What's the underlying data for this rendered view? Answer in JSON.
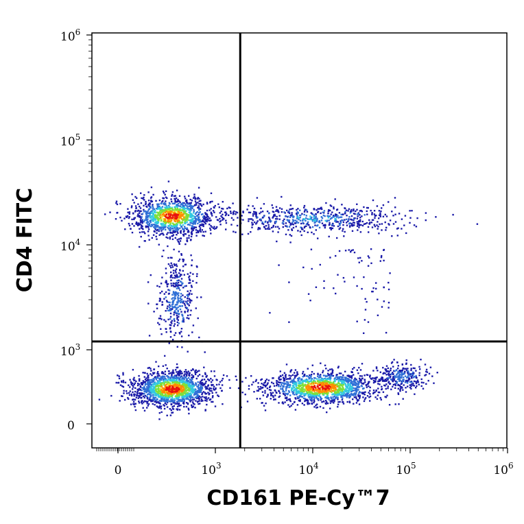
{
  "chart_data": {
    "type": "scatter",
    "subtype": "flow-cytometry-density-dot-plot",
    "xlabel": "CD161 PE-Cy™7",
    "ylabel": "CD4 FITC",
    "x_scale": "biexponential",
    "y_scale": "biexponential",
    "x_ticks": [
      {
        "base": "0",
        "exp": ""
      },
      {
        "base": "10",
        "exp": "3"
      },
      {
        "base": "10",
        "exp": "4"
      },
      {
        "base": "10",
        "exp": "5"
      },
      {
        "base": "10",
        "exp": "6"
      }
    ],
    "y_ticks": [
      {
        "base": "0",
        "exp": ""
      },
      {
        "base": "10",
        "exp": "3"
      },
      {
        "base": "10",
        "exp": "4"
      },
      {
        "base": "10",
        "exp": "5"
      },
      {
        "base": "10",
        "exp": "6"
      }
    ],
    "quadrant_gate": {
      "x": 1800,
      "y": 1200
    },
    "density_colors": [
      "#1a1aa8",
      "#2f6fd6",
      "#33c9e0",
      "#7ee03a",
      "#f0e020",
      "#ff8a00",
      "#e81010"
    ],
    "populations": [
      {
        "x": 550,
        "y": 19000,
        "weight": 0.22
      },
      {
        "x": 10000,
        "y": 18000,
        "weight": 0.12
      },
      {
        "x": 600,
        "y": 3000,
        "weight": 0.07
      },
      {
        "x": 550,
        "y": 480,
        "weight": 0.28
      },
      {
        "x": 12000,
        "y": 500,
        "weight": 0.26
      },
      {
        "x": 80000,
        "y": 650,
        "weight": 0.05
      }
    ],
    "grid": false,
    "legend": "none"
  }
}
